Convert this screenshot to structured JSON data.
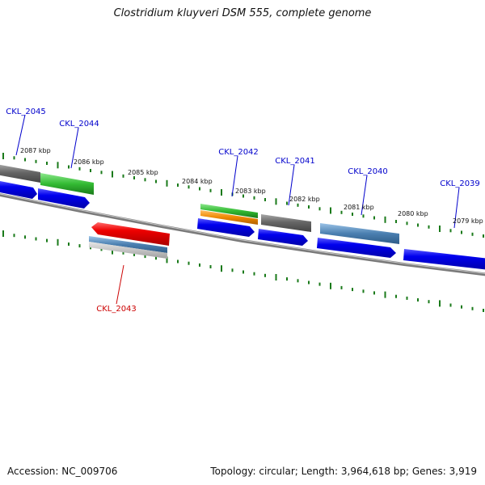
{
  "title": "Clostridium kluyveri DSM 555, complete genome",
  "footer": {
    "accession": "Accession: NC_009706",
    "summary": "Topology: circular; Length: 3,964,618 bp; Genes: 3,919"
  },
  "scale_labels": [
    "2087 kbp",
    "2086 kbp",
    "2085 kbp",
    "2084 kbp",
    "2083 kbp",
    "2082 kbp",
    "2081 kbp",
    "2080 kbp",
    "2079 kbp"
  ],
  "gene_labels": [
    "CKL_2045",
    "CKL_2044",
    "CKL_2042",
    "CKL_2041",
    "CKL_2040",
    "CKL_2039",
    "CKL_2043"
  ],
  "colors": {
    "gene_blue": "#0000ee",
    "gene_red": "#ee0000",
    "label_blue": "#0000cc",
    "label_red": "#cc0000",
    "tick_green": "#1a7a1a",
    "backbone": "#7a7a7a",
    "feature_gray": "#6e6e6e",
    "feature_green": "#33bb33",
    "feature_orange": "#ee8800",
    "feature_steelblue": "#4a7fb0",
    "feature_lightgray": "#bbbbbb"
  }
}
